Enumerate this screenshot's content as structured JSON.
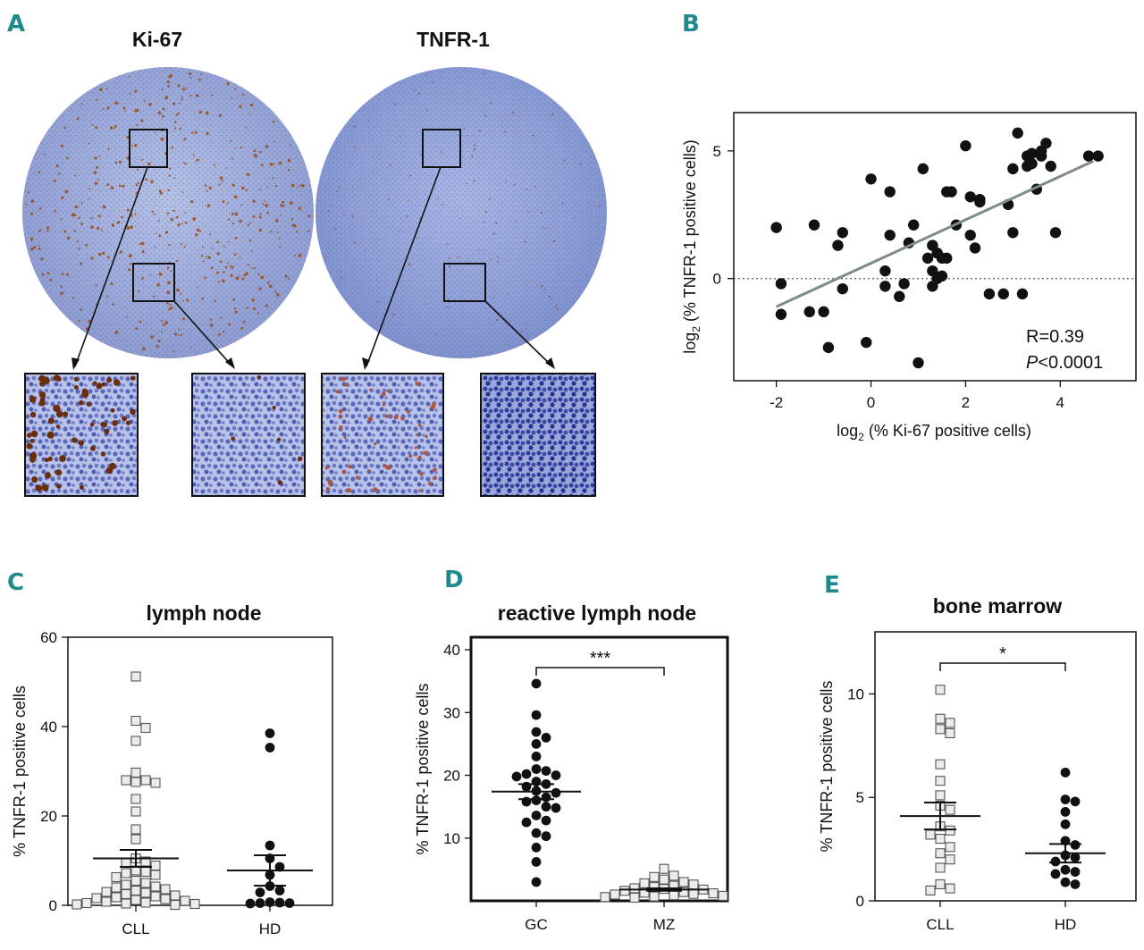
{
  "panels": {
    "A": {
      "label": "A",
      "stains": [
        {
          "name": "Ki-67",
          "color": "#9b4a14"
        },
        {
          "name": "TNFR-1",
          "color": "#8a5a55"
        }
      ]
    },
    "B": {
      "label": "B"
    },
    "C": {
      "label": "C"
    },
    "D": {
      "label": "D"
    },
    "E": {
      "label": "E"
    }
  },
  "chart_data": [
    {
      "panel": "B",
      "type": "scatter",
      "xlabel_prefix": "log",
      "xlabel_sub": "2",
      "xlabel_rest": " (% Ki-67 positive cells)",
      "ylabel_prefix": "log",
      "ylabel_sub": "2",
      "ylabel_rest": " (% TNFR-1 positive cells)",
      "xlim": [
        -2.9,
        5.6
      ],
      "ylim": [
        -4.0,
        6.5
      ],
      "xticks": [
        -2,
        0,
        2,
        4
      ],
      "yticks": [
        0,
        5
      ],
      "xtick_labels": [
        "-2",
        "0",
        "2",
        "4"
      ],
      "ytick_labels": [
        "0",
        "5"
      ],
      "reference_line_y": 0,
      "regression": {
        "x": [
          -2.0,
          4.7
        ],
        "y": [
          -1.1,
          4.6
        ]
      },
      "annotation_r": "R=0.39",
      "annotation_p_italic": "P",
      "annotation_p_rest": "<0.0001",
      "points": [
        [
          -2.0,
          2.0
        ],
        [
          -1.9,
          -0.2
        ],
        [
          -1.9,
          -1.4
        ],
        [
          -1.2,
          2.1
        ],
        [
          -1.3,
          -1.3
        ],
        [
          -1.0,
          -1.3
        ],
        [
          -0.9,
          -2.7
        ],
        [
          -0.7,
          1.3
        ],
        [
          -0.6,
          1.8
        ],
        [
          -0.6,
          -0.4
        ],
        [
          -0.1,
          -2.5
        ],
        [
          0.0,
          3.9
        ],
        [
          0.3,
          0.3
        ],
        [
          0.3,
          -0.3
        ],
        [
          0.4,
          3.4
        ],
        [
          0.4,
          1.7
        ],
        [
          0.6,
          -0.7
        ],
        [
          0.7,
          -0.2
        ],
        [
          0.8,
          1.4
        ],
        [
          0.9,
          2.1
        ],
        [
          1.0,
          -3.3
        ],
        [
          1.1,
          4.3
        ],
        [
          1.2,
          0.8
        ],
        [
          1.3,
          1.3
        ],
        [
          1.3,
          0.3
        ],
        [
          1.3,
          -0.3
        ],
        [
          1.4,
          1.0
        ],
        [
          1.4,
          0.0
        ],
        [
          1.5,
          0.8
        ],
        [
          1.5,
          0.1
        ],
        [
          1.6,
          0.8
        ],
        [
          1.6,
          3.4
        ],
        [
          1.7,
          3.4
        ],
        [
          1.8,
          2.1
        ],
        [
          2.0,
          5.2
        ],
        [
          2.1,
          3.2
        ],
        [
          2.1,
          1.7
        ],
        [
          2.2,
          1.2
        ],
        [
          2.3,
          3.1
        ],
        [
          2.3,
          3.0
        ],
        [
          2.5,
          -0.6
        ],
        [
          2.8,
          -0.6
        ],
        [
          2.9,
          2.9
        ],
        [
          3.0,
          4.3
        ],
        [
          3.0,
          1.8
        ],
        [
          3.1,
          5.7
        ],
        [
          3.2,
          -0.6
        ],
        [
          3.3,
          4.4
        ],
        [
          3.3,
          4.8
        ],
        [
          3.4,
          4.5
        ],
        [
          3.4,
          4.9
        ],
        [
          3.5,
          3.5
        ],
        [
          3.6,
          4.8
        ],
        [
          3.6,
          5.0
        ],
        [
          3.7,
          5.3
        ],
        [
          3.8,
          4.4
        ],
        [
          3.9,
          1.8
        ],
        [
          4.6,
          4.8
        ],
        [
          4.8,
          4.8
        ]
      ]
    },
    {
      "panel": "C",
      "type": "scatter",
      "title": "lymph node",
      "ylabel": "% TNFR-1 positive cells",
      "categories": [
        "CLL",
        "HD"
      ],
      "ylim": [
        0,
        60
      ],
      "yticks": [
        0,
        20,
        40,
        60
      ],
      "ytick_labels": [
        "0",
        "20",
        "40",
        "60"
      ],
      "series": [
        {
          "name": "CLL",
          "marker": "square-open",
          "mean": 10.5,
          "sem": 1.9,
          "values": [
            51.2,
            41.3,
            39.7,
            36.8,
            29.7,
            28.0,
            28.0,
            27.6,
            27.4,
            23.8,
            21.0,
            17.0,
            14.8,
            10.5,
            9.8,
            9.5,
            8.9,
            7.8,
            7.5,
            7.2,
            6.8,
            6.3,
            5.5,
            5.0,
            4.6,
            4.2,
            4.0,
            3.6,
            3.3,
            3.0,
            2.8,
            2.5,
            2.2,
            2.0,
            1.8,
            1.6,
            1.4,
            1.2,
            1.0,
            0.8,
            0.6,
            0.5,
            0.4,
            0.3,
            0.2,
            0.1
          ]
        },
        {
          "name": "HD",
          "marker": "circle-filled",
          "mean": 7.8,
          "sem": 3.4,
          "values": [
            38.5,
            35.3,
            13.4,
            10.5,
            8.6,
            6.8,
            4.3,
            3.3,
            2.9,
            0.7,
            0.6,
            0.5,
            0.5,
            0.4
          ]
        }
      ]
    },
    {
      "panel": "D",
      "type": "scatter",
      "title": "reactive lymph node",
      "ylabel": "% TNFR-1 positive cells",
      "categories": [
        "GC",
        "MZ"
      ],
      "ylim": [
        0,
        42
      ],
      "yticks": [
        10,
        20,
        30,
        40
      ],
      "ytick_labels": [
        "10",
        "20",
        "30",
        "40"
      ],
      "significance": "***",
      "series": [
        {
          "name": "GC",
          "marker": "circle-filled",
          "mean": 17.4,
          "sem": 1.2,
          "values": [
            34.6,
            29.6,
            26.9,
            26.0,
            25.0,
            23.0,
            21.0,
            20.7,
            20.2,
            20.0,
            19.8,
            19.0,
            18.6,
            18.2,
            17.5,
            17.2,
            16.5,
            16.0,
            15.8,
            15.0,
            14.8,
            13.6,
            12.8,
            12.5,
            10.8,
            10.3,
            8.5,
            6.2,
            3.0
          ]
        },
        {
          "name": "MZ",
          "marker": "square-open",
          "mean": 1.8,
          "sem": 0.2,
          "values": [
            5.1,
            4.0,
            3.8,
            3.4,
            3.0,
            2.8,
            2.6,
            2.4,
            2.2,
            2.0,
            1.9,
            1.8,
            1.6,
            1.4,
            1.3,
            1.2,
            1.1,
            1.0,
            0.9,
            0.8,
            0.7,
            0.6,
            0.5
          ]
        }
      ]
    },
    {
      "panel": "E",
      "type": "scatter",
      "title": "bone marrow",
      "ylabel": "% TNFR-1 positive cells",
      "categories": [
        "CLL",
        "HD"
      ],
      "ylim": [
        0,
        13
      ],
      "yticks": [
        0,
        5,
        10
      ],
      "ytick_labels": [
        "0",
        "5",
        "10"
      ],
      "significance": "*",
      "series": [
        {
          "name": "CLL",
          "marker": "square-open",
          "mean": 4.1,
          "sem": 0.65,
          "values": [
            10.2,
            8.8,
            8.6,
            8.3,
            8.1,
            6.6,
            5.8,
            5.1,
            4.6,
            4.4,
            3.6,
            3.4,
            3.2,
            3.0,
            2.6,
            2.3,
            2.0,
            1.6,
            0.8,
            0.6,
            0.5
          ]
        },
        {
          "name": "HD",
          "marker": "circle-filled",
          "mean": 2.3,
          "sem": 0.45,
          "values": [
            6.2,
            4.9,
            4.8,
            4.3,
            3.7,
            2.9,
            2.7,
            2.2,
            2.1,
            1.9,
            1.5,
            1.4,
            1.3,
            0.9,
            0.8
          ]
        }
      ]
    }
  ]
}
